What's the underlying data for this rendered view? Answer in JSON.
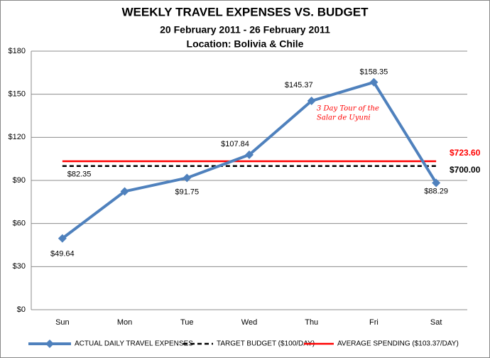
{
  "chart_data": {
    "type": "line",
    "title": "WEEKLY TRAVEL EXPENSES VS. BUDGET",
    "subtitle": "20 February 2011 - 26 February 2011",
    "subtitle2": "Location: Bolivia & Chile",
    "categories": [
      "Sun",
      "Mon",
      "Tue",
      "Wed",
      "Thu",
      "Fri",
      "Sat"
    ],
    "series": [
      {
        "name": "ACTUAL DAILY TRAVEL EXPENSES",
        "color": "#4f81bd",
        "marker": "diamond",
        "values": [
          49.64,
          82.35,
          91.75,
          107.84,
          145.37,
          158.35,
          88.29
        ],
        "value_labels": [
          "$49.64",
          "$82.35",
          "$91.75",
          "$107.84",
          "$145.37",
          "$158.35",
          "$88.29"
        ]
      },
      {
        "name": "TARGET BUDGET ($100/DAY)",
        "color": "#000000",
        "dashed": true,
        "values": [
          100,
          100,
          100,
          100,
          100,
          100,
          100
        ]
      },
      {
        "name": "AVERAGE SPENDING ($103.37/DAY)",
        "color": "#ff0000",
        "values": [
          103.37,
          103.37,
          103.37,
          103.37,
          103.37,
          103.37,
          103.37
        ]
      }
    ],
    "annotations": [
      {
        "text": "$723.60",
        "color": "#ff0000"
      },
      {
        "text": "$700.00",
        "color": "#000000"
      },
      {
        "text": "3 Day Tour of the",
        "color": "#ff0000"
      },
      {
        "text": "Salar de Uyuni",
        "color": "#ff0000"
      }
    ],
    "ylim": [
      0,
      180
    ],
    "yticks": [
      {
        "value": 0,
        "label": "$0"
      },
      {
        "value": 30,
        "label": "$30"
      },
      {
        "value": 60,
        "label": "$60"
      },
      {
        "value": 90,
        "label": "$90"
      },
      {
        "value": 120,
        "label": "$120"
      },
      {
        "value": 150,
        "label": "$150"
      },
      {
        "value": 180,
        "label": "$180"
      }
    ],
    "grid": true,
    "legend": "bottom"
  }
}
